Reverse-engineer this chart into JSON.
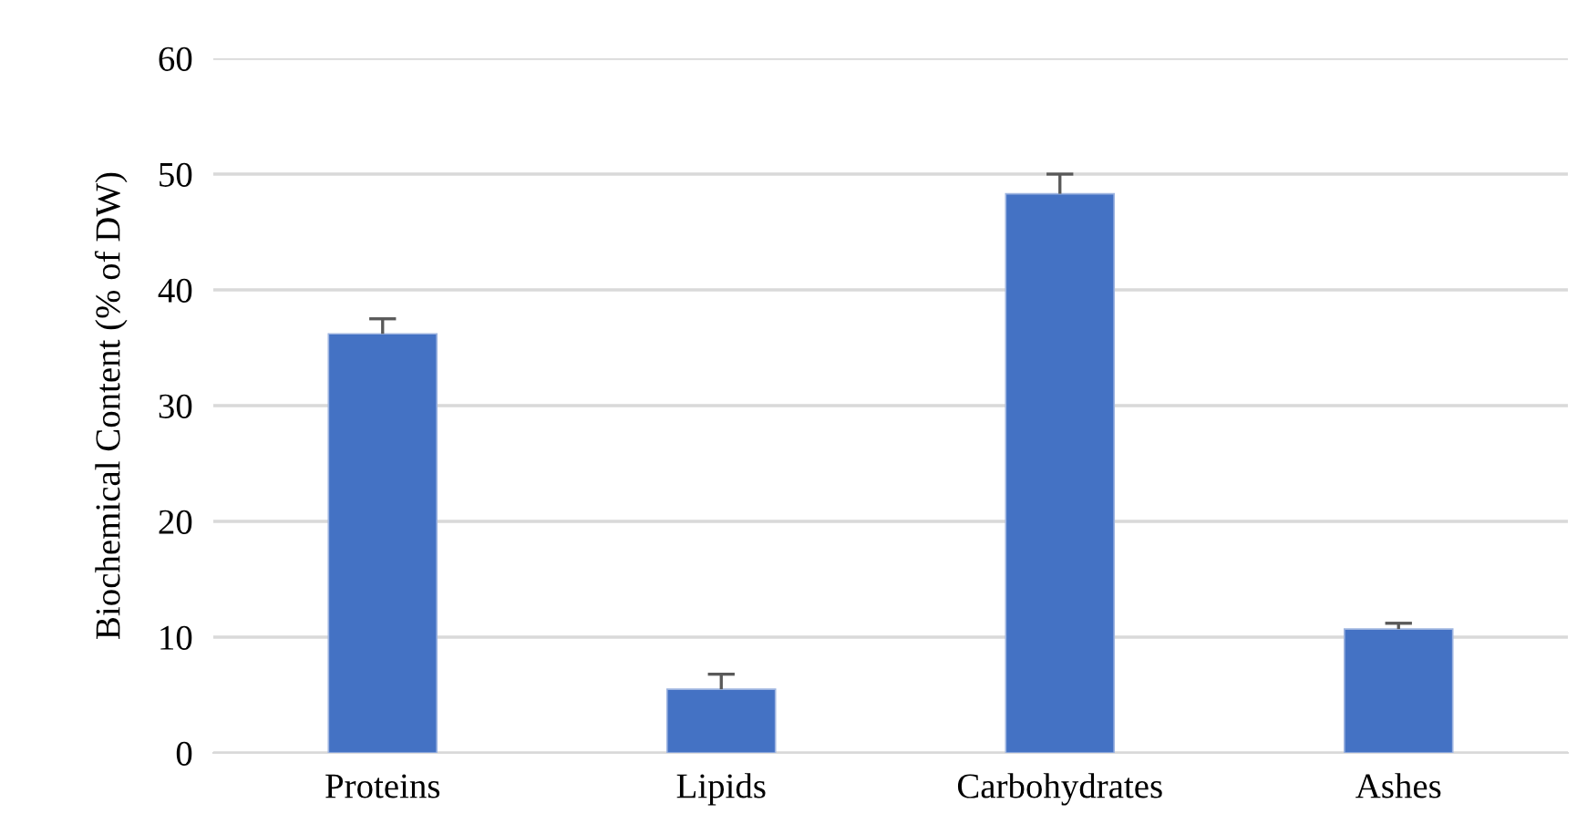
{
  "chart_data": {
    "type": "bar",
    "ylabel": "Biochemical Content (% of DW)",
    "categories": [
      "Proteins",
      "Lipids",
      "Carbohydrates",
      "Ashes"
    ],
    "values": [
      36.2,
      5.5,
      48.3,
      10.7
    ],
    "errors": [
      [
        36.2,
        37.5
      ],
      [
        5.5,
        6.8
      ],
      [
        48.3,
        50.0
      ],
      [
        10.7,
        11.2
      ]
    ],
    "color": "#4472c4",
    "ylim": [
      0,
      60
    ],
    "yticks": [
      0,
      10,
      20,
      30,
      40,
      50,
      60
    ],
    "grid": "y"
  }
}
